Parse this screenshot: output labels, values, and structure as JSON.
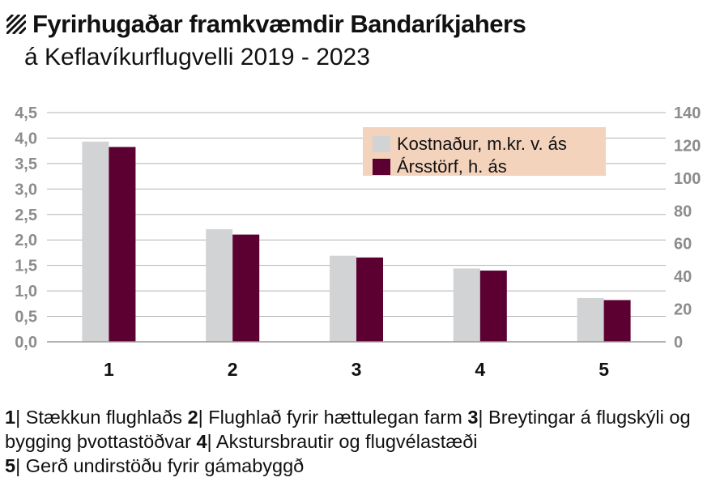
{
  "title": "Fyrirhugaðar framkvæmdir Bandaríkjahers",
  "subtitle": "á Keflavíkurflugvelli 2019 - 2023",
  "chart_data": {
    "type": "bar",
    "categories": [
      "1",
      "2",
      "3",
      "4",
      "5"
    ],
    "series": [
      {
        "name": "Kostnaður, m.kr. v. ás",
        "axis": "left",
        "color": "#d1d3d4",
        "values": [
          3.93,
          2.21,
          1.69,
          1.44,
          0.86
        ]
      },
      {
        "name": "Ársstörf, h. ás",
        "axis": "right",
        "color": "#5c0031",
        "values": [
          119,
          65.5,
          51.5,
          43.5,
          25.5
        ]
      }
    ],
    "left_axis": {
      "ylim": [
        0,
        4.5
      ],
      "ticks": [
        "0,0",
        "0,5",
        "1,0",
        "1,5",
        "2,0",
        "2,5",
        "3,0",
        "3,5",
        "4,0",
        "4,5"
      ]
    },
    "right_axis": {
      "ylim": [
        0,
        140
      ],
      "ticks": [
        "0",
        "20",
        "40",
        "60",
        "80",
        "100",
        "120",
        "140"
      ]
    },
    "grid": true,
    "legend_position": "top-right",
    "legend_bg": "#f4d3bd"
  },
  "caption": [
    {
      "num": "1",
      "text": " Stækkun flughlaðs "
    },
    {
      "num": "2",
      "text": " Flughlað fyrir hættulegan farm "
    },
    {
      "num": "3",
      "text": " Breytingar á flugskýli og bygging þvottastöðvar "
    },
    {
      "num": "4",
      "text": " Akstursbrautir og flugvélastæði"
    },
    {
      "num": "5",
      "text": " Gerð undirstöðu fyrir gámabyggð"
    }
  ]
}
